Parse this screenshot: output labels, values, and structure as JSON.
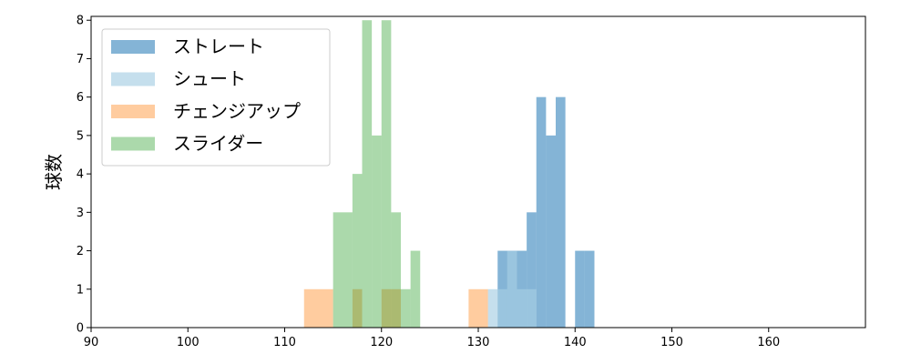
{
  "chart_data": {
    "type": "histogram",
    "title": "",
    "xlabel": "",
    "ylabel": "球数",
    "xlim": [
      90,
      170
    ],
    "ylim": [
      0,
      8.1
    ],
    "x_ticks": [
      90,
      100,
      110,
      120,
      130,
      140,
      150,
      160
    ],
    "y_ticks": [
      0,
      1,
      2,
      3,
      4,
      5,
      6,
      7,
      8
    ],
    "grid": false,
    "legend_position": "upper-left",
    "series": [
      {
        "name": "ストレート",
        "color": "#1f77b4",
        "opacity": 0.55,
        "bins": [
          {
            "start": 132,
            "end": 133,
            "count": 2
          },
          {
            "start": 133,
            "end": 134,
            "count": 2
          },
          {
            "start": 134,
            "end": 135,
            "count": 2
          },
          {
            "start": 135,
            "end": 136,
            "count": 3
          },
          {
            "start": 136,
            "end": 137,
            "count": 6
          },
          {
            "start": 137,
            "end": 138,
            "count": 5
          },
          {
            "start": 138,
            "end": 139,
            "count": 6
          },
          {
            "start": 140,
            "end": 141,
            "count": 2
          },
          {
            "start": 141,
            "end": 142,
            "count": 2
          }
        ]
      },
      {
        "name": "シュート",
        "color": "#a6cee3",
        "opacity": 0.65,
        "bins": [
          {
            "start": 131,
            "end": 132,
            "count": 1
          },
          {
            "start": 132,
            "end": 133,
            "count": 1
          },
          {
            "start": 133,
            "end": 134,
            "count": 2
          },
          {
            "start": 134,
            "end": 135,
            "count": 1
          },
          {
            "start": 135,
            "end": 136,
            "count": 1
          }
        ]
      },
      {
        "name": "チェンジアップ",
        "color": "#ff7f0e",
        "opacity": 0.4,
        "bins": [
          {
            "start": 112,
            "end": 115,
            "count": 1
          },
          {
            "start": 117,
            "end": 118,
            "count": 1
          },
          {
            "start": 120,
            "end": 122,
            "count": 1
          },
          {
            "start": 129,
            "end": 131,
            "count": 1
          }
        ]
      },
      {
        "name": "スライダー",
        "color": "#2ca02c",
        "opacity": 0.4,
        "bins": [
          {
            "start": 115,
            "end": 117,
            "count": 3
          },
          {
            "start": 117,
            "end": 118,
            "count": 4
          },
          {
            "start": 118,
            "end": 119,
            "count": 8
          },
          {
            "start": 119,
            "end": 120,
            "count": 5
          },
          {
            "start": 120,
            "end": 121,
            "count": 8
          },
          {
            "start": 121,
            "end": 122,
            "count": 3
          },
          {
            "start": 122,
            "end": 123,
            "count": 1
          },
          {
            "start": 123,
            "end": 124,
            "count": 2
          }
        ]
      }
    ]
  }
}
